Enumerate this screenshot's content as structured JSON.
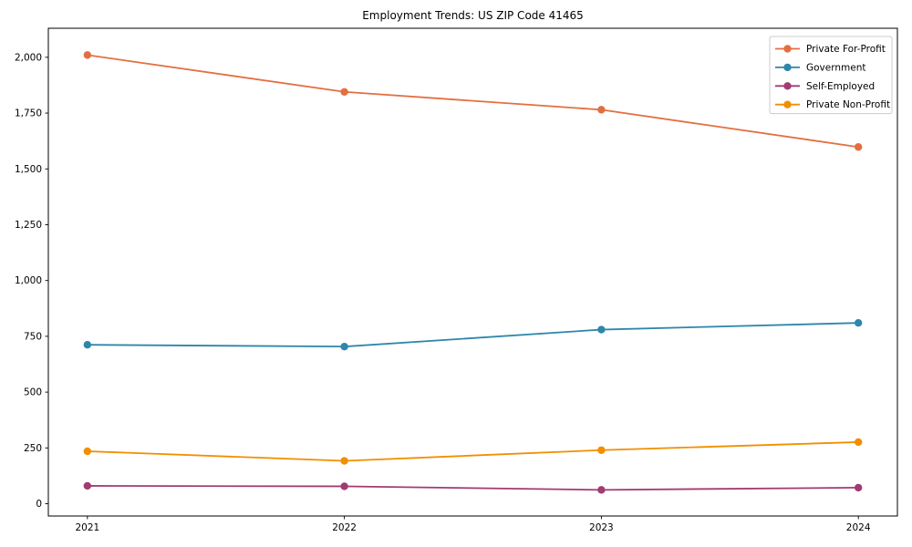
{
  "chart_data": {
    "type": "line",
    "title": "Employment Trends: US ZIP Code 41465",
    "x": [
      "2021",
      "2022",
      "2023",
      "2024"
    ],
    "series": [
      {
        "name": "Private For-Profit",
        "color": "#e36f41",
        "values": [
          2010,
          1845,
          1765,
          1598
        ]
      },
      {
        "name": "Government",
        "color": "#2e86ab",
        "values": [
          712,
          704,
          780,
          810
        ]
      },
      {
        "name": "Self-Employed",
        "color": "#a23b72",
        "values": [
          80,
          78,
          62,
          72
        ]
      },
      {
        "name": "Private Non-Profit",
        "color": "#f18f01",
        "values": [
          235,
          192,
          240,
          276
        ]
      }
    ],
    "xlabel": "",
    "ylabel": "",
    "ylim": [
      -55,
      2130
    ],
    "yticks": [
      0,
      250,
      500,
      750,
      1000,
      1250,
      1500,
      1750,
      2000
    ],
    "grid": false,
    "legend_position": "upper right",
    "marker": "circle",
    "background": "#ffffff",
    "axis_color": "#000000",
    "legend_border_color": "#cccccc"
  }
}
